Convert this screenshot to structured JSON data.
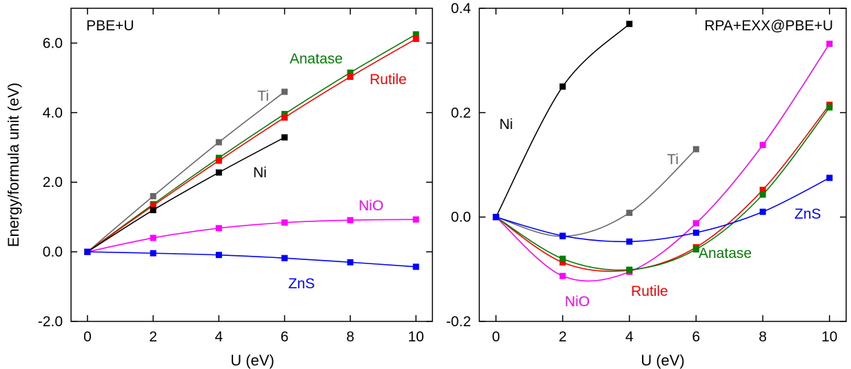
{
  "chart_data": [
    {
      "type": "line",
      "title": "PBE+U",
      "xlabel": "U (eV)",
      "ylabel": "Energy/formula unit (eV)",
      "xlim": [
        -0.5,
        10.5
      ],
      "ylim": [
        -2.0,
        7.0
      ],
      "xticks": [
        0,
        2,
        4,
        6,
        8,
        10
      ],
      "xtick_labels": [
        "0",
        "2",
        "4",
        "6",
        "8",
        "10"
      ],
      "yticks": [
        -2,
        0,
        2,
        4,
        6
      ],
      "ytick_labels": [
        "-2.0",
        "0.0",
        "2.0",
        "4.0",
        "6.0"
      ],
      "grid": false,
      "legend": "inline labels",
      "series": [
        {
          "name": "Ti",
          "color": "#666666",
          "x": [
            0,
            2,
            4,
            6
          ],
          "y": [
            0.0,
            1.6,
            3.15,
            4.6
          ]
        },
        {
          "name": "Anatase",
          "color": "#008000",
          "x": [
            0,
            2,
            4,
            6,
            8,
            10
          ],
          "y": [
            0.0,
            1.37,
            2.7,
            3.96,
            5.15,
            6.25
          ]
        },
        {
          "name": "Rutile",
          "color": "#ff0000",
          "x": [
            0,
            2,
            4,
            6,
            8,
            10
          ],
          "y": [
            0.0,
            1.33,
            2.62,
            3.86,
            5.03,
            6.12
          ]
        },
        {
          "name": "Ni",
          "color": "#000000",
          "x": [
            0,
            2,
            4,
            6
          ],
          "y": [
            0.0,
            1.2,
            2.28,
            3.29
          ]
        },
        {
          "name": "NiO",
          "color": "#ff00ff",
          "x": [
            0,
            2,
            4,
            6,
            8,
            10
          ],
          "y": [
            0.0,
            0.4,
            0.68,
            0.84,
            0.91,
            0.93
          ]
        },
        {
          "name": "ZnS",
          "color": "#0000ff",
          "x": [
            0,
            2,
            4,
            6,
            8,
            10
          ],
          "y": [
            0.0,
            -0.04,
            -0.09,
            -0.18,
            -0.3,
            -0.43
          ]
        }
      ]
    },
    {
      "type": "line",
      "title": "RPA+EXX@PBE+U",
      "xlabel": "U (eV)",
      "ylabel": "",
      "xlim": [
        -0.5,
        10.5
      ],
      "ylim": [
        -0.2,
        0.4
      ],
      "xticks": [
        0,
        2,
        4,
        6,
        8,
        10
      ],
      "xtick_labels": [
        "0",
        "2",
        "4",
        "6",
        "8",
        "10"
      ],
      "yticks": [
        -0.2,
        0.0,
        0.2,
        0.4
      ],
      "ytick_labels": [
        "-0.2",
        "0.0",
        "0.2",
        "0.4"
      ],
      "grid": false,
      "legend": "inline labels",
      "series": [
        {
          "name": "Ni",
          "color": "#000000",
          "x": [
            0,
            2,
            4
          ],
          "y": [
            0.0,
            0.25,
            0.37
          ]
        },
        {
          "name": "Ti",
          "color": "#666666",
          "x": [
            0,
            2,
            4,
            6
          ],
          "y": [
            0.0,
            -0.037,
            0.008,
            0.13
          ]
        },
        {
          "name": "NiO",
          "color": "#ff00ff",
          "x": [
            0,
            2,
            4,
            6,
            8,
            10
          ],
          "y": [
            0.0,
            -0.113,
            -0.105,
            -0.012,
            0.138,
            0.332
          ]
        },
        {
          "name": "Rutile",
          "color": "#ff0000",
          "x": [
            0,
            2,
            4,
            6,
            8,
            10
          ],
          "y": [
            0.0,
            -0.087,
            -0.102,
            -0.058,
            0.052,
            0.215
          ]
        },
        {
          "name": "Anatase",
          "color": "#008000",
          "x": [
            0,
            2,
            4,
            6,
            8,
            10
          ],
          "y": [
            0.0,
            -0.08,
            -0.101,
            -0.062,
            0.043,
            0.21
          ]
        },
        {
          "name": "ZnS",
          "color": "#0000ff",
          "x": [
            0,
            2,
            4,
            6,
            8,
            10
          ],
          "y": [
            0.0,
            -0.036,
            -0.047,
            -0.03,
            0.01,
            0.075
          ]
        }
      ]
    }
  ]
}
